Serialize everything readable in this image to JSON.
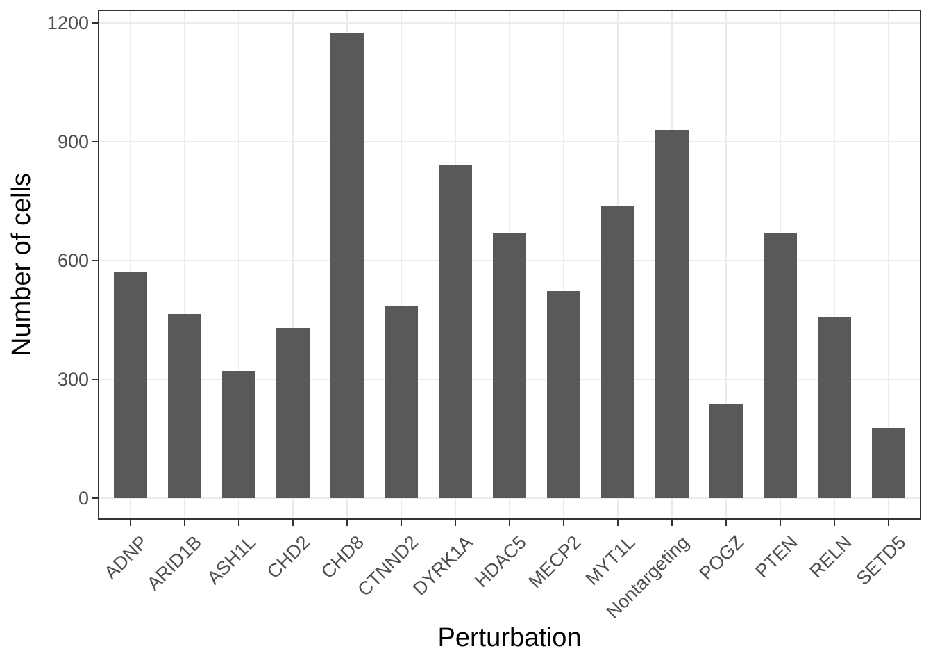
{
  "chart_data": {
    "type": "bar",
    "title": "",
    "xlabel": "Perturbation",
    "ylabel": "Number of cells",
    "categories": [
      "ADNP",
      "ARID1B",
      "ASH1L",
      "CHD2",
      "CHD8",
      "CTNND2",
      "DYRK1A",
      "HDAC5",
      "MECP2",
      "MYT1L",
      "Nontargeting",
      "POGZ",
      "PTEN",
      "RELN",
      "SETD5"
    ],
    "values": [
      570,
      465,
      320,
      430,
      1175,
      485,
      843,
      670,
      523,
      738,
      930,
      238,
      668,
      458,
      177
    ],
    "y_ticks": [
      0,
      300,
      600,
      900,
      1200
    ],
    "y_tick_labels": [
      "0",
      "300",
      "600",
      "900",
      "1200"
    ],
    "ylim": [
      0,
      1200
    ],
    "y_domain": [
      -55,
      1234
    ],
    "grid": "major gridlines only; horizontal at y ticks, vertical at each category center",
    "legend_position": "none",
    "x_tick_label_angle_deg": 45,
    "colors": {
      "bar_fill": "#595959",
      "panel_border": "#333333",
      "gridline": "#EBEBEB",
      "tick_mark": "#333333",
      "tick_label_text": "#4D4D4D",
      "axis_title_text": "#000000",
      "background": "#FFFFFF"
    }
  }
}
